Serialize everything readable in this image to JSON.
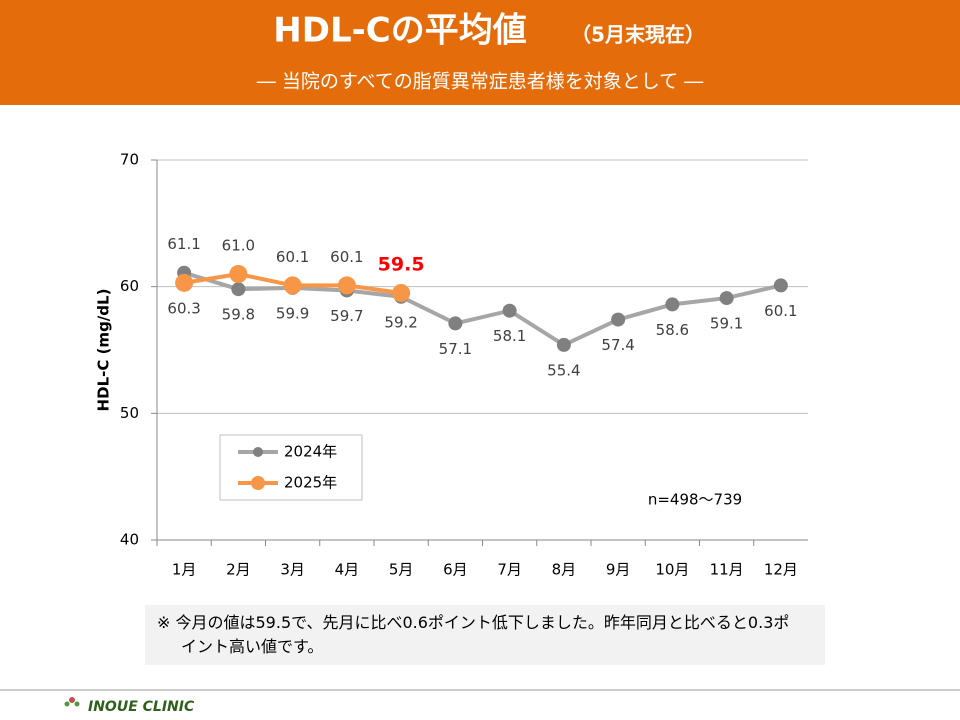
{
  "header": {
    "title": "HDL-Cの平均値",
    "title_note": "（5月末現在）",
    "subtitle": "―  当院のすべての脂質異常症患者様を対象として  ―"
  },
  "chart_data": {
    "type": "line",
    "categories": [
      "1月",
      "2月",
      "3月",
      "4月",
      "5月",
      "6月",
      "7月",
      "8月",
      "9月",
      "10月",
      "11月",
      "12月"
    ],
    "series": [
      {
        "name": "2024年",
        "color": "#a6a6a6",
        "marker_color": "#808080",
        "values": [
          61.1,
          59.8,
          59.9,
          59.7,
          59.2,
          57.1,
          58.1,
          55.4,
          57.4,
          58.6,
          59.1,
          60.1
        ]
      },
      {
        "name": "2025年",
        "color": "#f79646",
        "marker_color": "#f79646",
        "values": [
          60.3,
          61,
          60.1,
          60.1,
          59.5,
          null,
          null,
          null,
          null,
          null,
          null,
          null
        ],
        "value_labels": [
          "60.3",
          "61.0",
          "60.1",
          "60.1",
          "59.5",
          null,
          null,
          null,
          null,
          null,
          null,
          null
        ]
      }
    ],
    "highlight_color": "#ff0000",
    "ylabel": "HDL-C (mg/dL)",
    "ylim": [
      40,
      70
    ],
    "yticks": [
      40,
      50,
      60,
      70
    ],
    "grid": true,
    "annotation": "n=498～739"
  },
  "note": "※ 今月の値は59.5で、先月に比べ0.6ポイント低下しました。昨年同月と比べると0.3ポイント高い値です。",
  "footer": {
    "clinic": "INOUE CLINIC"
  }
}
